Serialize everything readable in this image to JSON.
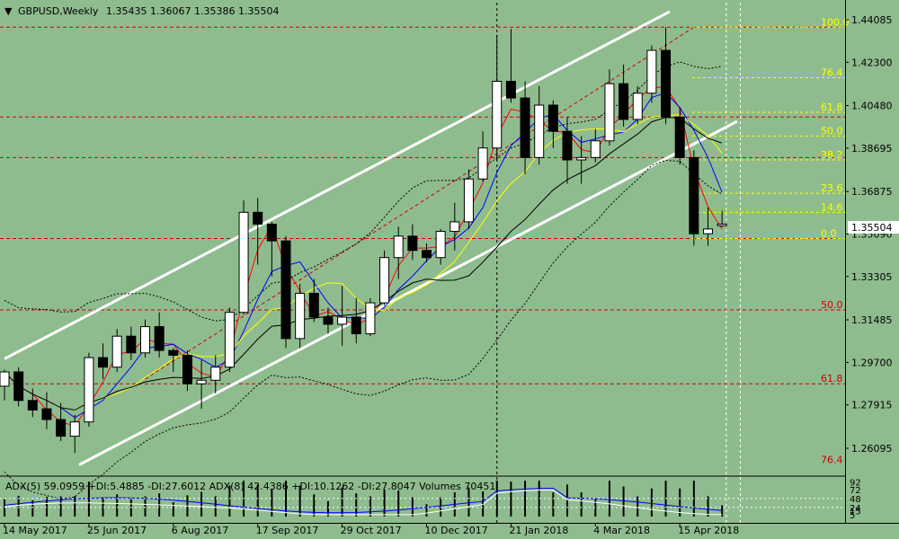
{
  "header": {
    "symbol": "GBPUSD,Weekly",
    "ohlc": "1.35435 1.36067 1.35386 1.35504"
  },
  "indicator_text": "ADX(5) 59.0959 +DI:5.4885 -DI:27.6012  ADX(8) 42.4386 +DI:10.1262 -DI:27.8047  Volumes 70451",
  "current_price": "1.35504",
  "colors": {
    "background": "#8fbc8f",
    "bull_candle": "#ffffff",
    "bear_candle": "#000000",
    "channel": "#ffffff",
    "horizontal_levels": "#cc0000",
    "fib_yellow": "#ffff00",
    "fib_red": "#cc0000",
    "ma_red": "#ff0000",
    "ma_blue": "#0000ff",
    "ma_yellow": "#ffff00",
    "ma_black": "#000000",
    "adx_line": "#0000ff",
    "di_line": "#ffffff"
  },
  "chart_data": {
    "type": "candlestick",
    "price_range": [
      1.25,
      1.448
    ],
    "y_ticks": [
      "1.44085",
      "1.42300",
      "1.40480",
      "1.38695",
      "1.36875",
      "1.35090",
      "1.33305",
      "1.31485",
      "1.29700",
      "1.27915",
      "1.26095"
    ],
    "x_ticks": [
      {
        "label": "14 May 2017",
        "i": 0
      },
      {
        "label": "25 Jun 2017",
        "i": 6
      },
      {
        "label": "6 Aug 2017",
        "i": 12
      },
      {
        "label": "17 Sep 2017",
        "i": 18
      },
      {
        "label": "29 Oct 2017",
        "i": 24
      },
      {
        "label": "10 Dec 2017",
        "i": 30
      },
      {
        "label": "21 Jan 2018",
        "i": 36
      },
      {
        "label": "4 Mar 2018",
        "i": 42
      },
      {
        "label": "15 Apr 2018",
        "i": 48
      }
    ],
    "candles": [
      {
        "o": 1.287,
        "h": 1.294,
        "l": 1.281,
        "c": 1.293
      },
      {
        "o": 1.293,
        "h": 1.295,
        "l": 1.2785,
        "c": 1.281
      },
      {
        "o": 1.281,
        "h": 1.286,
        "l": 1.274,
        "c": 1.277
      },
      {
        "o": 1.2775,
        "h": 1.2845,
        "l": 1.269,
        "c": 1.273
      },
      {
        "o": 1.273,
        "h": 1.28,
        "l": 1.264,
        "c": 1.266
      },
      {
        "o": 1.266,
        "h": 1.275,
        "l": 1.259,
        "c": 1.272
      },
      {
        "o": 1.272,
        "h": 1.301,
        "l": 1.27,
        "c": 1.299
      },
      {
        "o": 1.299,
        "h": 1.305,
        "l": 1.29,
        "c": 1.295
      },
      {
        "o": 1.295,
        "h": 1.311,
        "l": 1.293,
        "c": 1.308
      },
      {
        "o": 1.308,
        "h": 1.312,
        "l": 1.298,
        "c": 1.301
      },
      {
        "o": 1.301,
        "h": 1.315,
        "l": 1.299,
        "c": 1.312
      },
      {
        "o": 1.312,
        "h": 1.318,
        "l": 1.299,
        "c": 1.302
      },
      {
        "o": 1.302,
        "h": 1.303,
        "l": 1.293,
        "c": 1.3
      },
      {
        "o": 1.3,
        "h": 1.302,
        "l": 1.285,
        "c": 1.288
      },
      {
        "o": 1.288,
        "h": 1.298,
        "l": 1.2775,
        "c": 1.2895
      },
      {
        "o": 1.2895,
        "h": 1.3,
        "l": 1.284,
        "c": 1.295
      },
      {
        "o": 1.295,
        "h": 1.32,
        "l": 1.293,
        "c": 1.318
      },
      {
        "o": 1.318,
        "h": 1.365,
        "l": 1.317,
        "c": 1.36
      },
      {
        "o": 1.36,
        "h": 1.366,
        "l": 1.338,
        "c": 1.355
      },
      {
        "o": 1.355,
        "h": 1.356,
        "l": 1.333,
        "c": 1.348
      },
      {
        "o": 1.348,
        "h": 1.35,
        "l": 1.303,
        "c": 1.307
      },
      {
        "o": 1.307,
        "h": 1.33,
        "l": 1.303,
        "c": 1.326
      },
      {
        "o": 1.326,
        "h": 1.332,
        "l": 1.314,
        "c": 1.316
      },
      {
        "o": 1.316,
        "h": 1.32,
        "l": 1.309,
        "c": 1.313
      },
      {
        "o": 1.313,
        "h": 1.329,
        "l": 1.304,
        "c": 1.316
      },
      {
        "o": 1.316,
        "h": 1.324,
        "l": 1.305,
        "c": 1.309
      },
      {
        "o": 1.309,
        "h": 1.324,
        "l": 1.308,
        "c": 1.322
      },
      {
        "o": 1.322,
        "h": 1.344,
        "l": 1.321,
        "c": 1.341
      },
      {
        "o": 1.341,
        "h": 1.354,
        "l": 1.332,
        "c": 1.35
      },
      {
        "o": 1.35,
        "h": 1.355,
        "l": 1.34,
        "c": 1.344
      },
      {
        "o": 1.344,
        "h": 1.347,
        "l": 1.339,
        "c": 1.341
      },
      {
        "o": 1.341,
        "h": 1.353,
        "l": 1.338,
        "c": 1.352
      },
      {
        "o": 1.352,
        "h": 1.364,
        "l": 1.344,
        "c": 1.356
      },
      {
        "o": 1.356,
        "h": 1.378,
        "l": 1.353,
        "c": 1.374
      },
      {
        "o": 1.374,
        "h": 1.394,
        "l": 1.373,
        "c": 1.387
      },
      {
        "o": 1.387,
        "h": 1.4345,
        "l": 1.382,
        "c": 1.415
      },
      {
        "o": 1.415,
        "h": 1.437,
        "l": 1.406,
        "c": 1.408
      },
      {
        "o": 1.408,
        "h": 1.415,
        "l": 1.376,
        "c": 1.383
      },
      {
        "o": 1.383,
        "h": 1.413,
        "l": 1.38,
        "c": 1.405
      },
      {
        "o": 1.405,
        "h": 1.407,
        "l": 1.387,
        "c": 1.394
      },
      {
        "o": 1.394,
        "h": 1.4,
        "l": 1.372,
        "c": 1.382
      },
      {
        "o": 1.382,
        "h": 1.392,
        "l": 1.372,
        "c": 1.383
      },
      {
        "o": 1.383,
        "h": 1.395,
        "l": 1.381,
        "c": 1.39
      },
      {
        "o": 1.39,
        "h": 1.42,
        "l": 1.388,
        "c": 1.414
      },
      {
        "o": 1.414,
        "h": 1.422,
        "l": 1.396,
        "c": 1.399
      },
      {
        "o": 1.399,
        "h": 1.413,
        "l": 1.397,
        "c": 1.41
      },
      {
        "o": 1.41,
        "h": 1.43,
        "l": 1.406,
        "c": 1.428
      },
      {
        "o": 1.428,
        "h": 1.4377,
        "l": 1.397,
        "c": 1.4
      },
      {
        "o": 1.4,
        "h": 1.404,
        "l": 1.38,
        "c": 1.383
      },
      {
        "o": 1.383,
        "h": 1.386,
        "l": 1.346,
        "c": 1.351
      },
      {
        "o": 1.351,
        "h": 1.362,
        "l": 1.346,
        "c": 1.353
      },
      {
        "o": 1.35435,
        "h": 1.36067,
        "l": 1.35386,
        "c": 1.35504
      }
    ],
    "horizontal_levels": [
      1.4377,
      1.4,
      1.383,
      1.349,
      1.319,
      1.288
    ],
    "fib_levels_yellow": [
      {
        "label": "100.0",
        "v": 1.4377
      },
      {
        "label": "76.4",
        "v": 1.4165
      },
      {
        "label": "61.8",
        "v": 1.402
      },
      {
        "label": "50.0",
        "v": 1.392
      },
      {
        "label": "38.2",
        "v": 1.382
      },
      {
        "label": "23.6",
        "v": 1.368
      },
      {
        "label": "14.6",
        "v": 1.36
      },
      {
        "label": "0.0",
        "v": 1.349
      }
    ],
    "fib_levels_red": [
      {
        "label": "50.0",
        "v": 1.319
      },
      {
        "label": "61.8",
        "v": 1.288
      },
      {
        "label": "76.4",
        "v": 1.254
      }
    ],
    "indicator_ticks": [
      "92",
      "72",
      "48",
      "24",
      "15",
      "5"
    ]
  }
}
